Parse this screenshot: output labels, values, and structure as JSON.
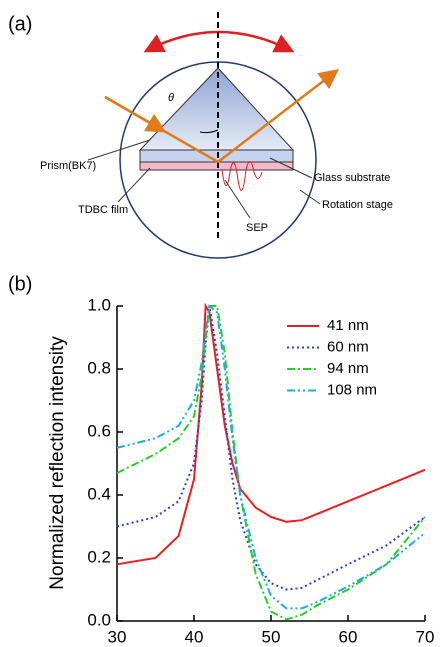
{
  "panel_labels": [
    "(a)",
    "(b)"
  ],
  "diagram": {
    "theta": "θ",
    "prism": "Prism(BK7)",
    "glass": "Glass substrate",
    "rotation": "Rotation stage",
    "tdbc": "TDBC film",
    "sep": "SEP"
  },
  "chart_data": {
    "type": "line",
    "y_label": "Normalized reflection intensity",
    "x": [
      30,
      35,
      38,
      40,
      41,
      41.5,
      42,
      43,
      44,
      45,
      46,
      48,
      50,
      52,
      54,
      56,
      60,
      65,
      70
    ],
    "series": [
      {
        "name": "41 nm",
        "color": "#e8201e",
        "style": "solid",
        "values": [
          0.18,
          0.2,
          0.27,
          0.45,
          0.75,
          1.0,
          0.98,
          0.8,
          0.62,
          0.5,
          0.42,
          0.36,
          0.33,
          0.315,
          0.32,
          0.34,
          0.38,
          0.43,
          0.48
        ]
      },
      {
        "name": "60 nm",
        "color": "#2a3fd0",
        "style": "dotted",
        "values": [
          0.3,
          0.33,
          0.38,
          0.5,
          0.7,
          0.88,
          1.0,
          0.85,
          0.65,
          0.45,
          0.32,
          0.18,
          0.12,
          0.1,
          0.105,
          0.13,
          0.18,
          0.24,
          0.33
        ]
      },
      {
        "name": "94 nm",
        "color": "#22d022",
        "style": "dashdot",
        "values": [
          0.47,
          0.53,
          0.58,
          0.65,
          0.78,
          0.9,
          1.0,
          1.0,
          0.85,
          0.6,
          0.4,
          0.15,
          0.03,
          0.005,
          0.02,
          0.05,
          0.1,
          0.18,
          0.33
        ]
      },
      {
        "name": "108 nm",
        "color": "#1ea8e8",
        "style": "dashdotdot",
        "values": [
          0.55,
          0.58,
          0.62,
          0.7,
          0.82,
          0.92,
          1.0,
          0.98,
          0.8,
          0.58,
          0.4,
          0.2,
          0.08,
          0.04,
          0.04,
          0.06,
          0.11,
          0.18,
          0.28
        ]
      }
    ],
    "xlim": [
      30,
      70
    ],
    "ylim": [
      0,
      1
    ],
    "xticks": [
      30,
      40,
      50,
      60,
      70
    ],
    "yticks": [
      {
        "value": 0,
        "label": "0.0"
      },
      0.2,
      0.4,
      0.6,
      0.8,
      {
        "value": 1,
        "label": "1.0"
      }
    ],
    "legend": "upper-right"
  }
}
